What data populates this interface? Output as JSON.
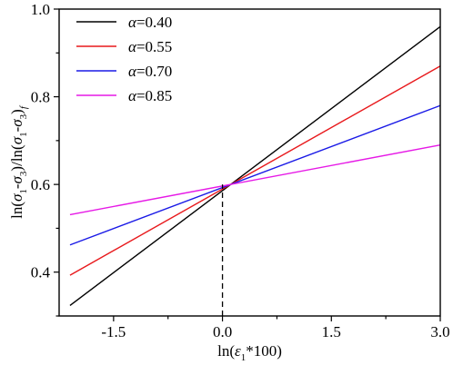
{
  "chart_data": {
    "type": "line",
    "xlabel": "ln(ε1*100)",
    "ylabel": "ln(σ1-σ3)/ln(σ1-σ3)f",
    "xlim": [
      -2.25,
      3.0
    ],
    "ylim": [
      0.3,
      1.0
    ],
    "xticks": [
      -1.5,
      0.0,
      1.5,
      3.0
    ],
    "xtick_labels": [
      "-1.5",
      "0.0",
      "1.5",
      "3.0"
    ],
    "yticks": [
      0.4,
      0.6,
      0.8,
      1.0
    ],
    "ytick_labels": [
      "0.4",
      "0.6",
      "0.8",
      "1.0"
    ],
    "legend_position": "top-left",
    "grid": false,
    "annotations": [
      {
        "type": "dashed-vertical-line",
        "x": 0.0,
        "y_from": 0.3,
        "y_to": 0.6
      }
    ],
    "series": [
      {
        "name": "α=0.40",
        "legend_symbol": "α",
        "legend_value": "=0.40",
        "color": "#000000",
        "x": [
          -2.1,
          3.0
        ],
        "y": [
          0.324,
          0.96
        ]
      },
      {
        "name": "α=0.55",
        "legend_symbol": "α",
        "legend_value": "=0.55",
        "color": "#e8191c",
        "x": [
          -2.1,
          3.0
        ],
        "y": [
          0.393,
          0.87
        ]
      },
      {
        "name": "α=0.70",
        "legend_symbol": "α",
        "legend_value": "=0.70",
        "color": "#1a1ae6",
        "x": [
          -2.1,
          3.0
        ],
        "y": [
          0.462,
          0.78
        ]
      },
      {
        "name": "α=0.85",
        "legend_symbol": "α",
        "legend_value": "=0.85",
        "color": "#e619e6",
        "x": [
          -2.1,
          3.0
        ],
        "y": [
          0.531,
          0.69
        ]
      }
    ]
  }
}
